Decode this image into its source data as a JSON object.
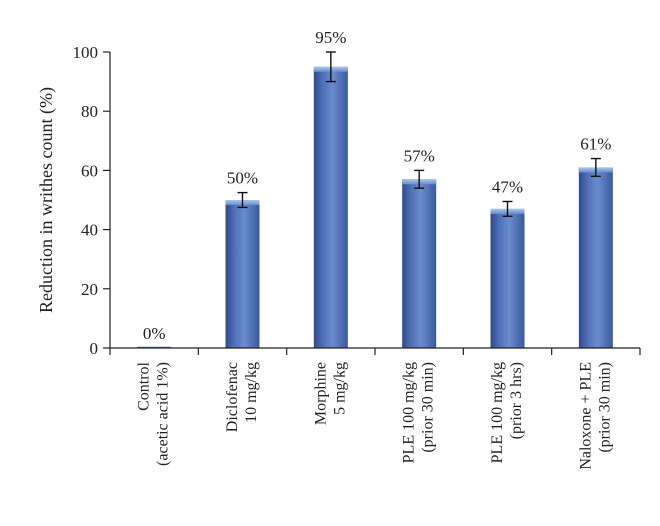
{
  "chart_data": {
    "type": "bar",
    "ylabel": "Reduction in writhes count (%)",
    "ylim": [
      0,
      100
    ],
    "yticks": [
      0,
      20,
      40,
      60,
      80,
      100
    ],
    "grid": false,
    "categories": [
      [
        "Control",
        "(acetic acid 1%)"
      ],
      [
        "Diclofenac",
        "10 mg/kg"
      ],
      [
        "Morphine",
        "5 mg/kg"
      ],
      [
        "PLE 100 mg/kg",
        "(prior 30 min)"
      ],
      [
        "PLE 100 mg/kg",
        "(prior 3 hrs)"
      ],
      [
        "Naloxone + PLE",
        "(prior 30 min)"
      ]
    ],
    "values": [
      0,
      50,
      95,
      57,
      47,
      61
    ],
    "errors": [
      0,
      2.5,
      5,
      3,
      2.5,
      3
    ],
    "data_labels": [
      "0%",
      "50%",
      "95%",
      "57%",
      "47%",
      "61%"
    ],
    "colors": {
      "bar": "#4f6fb8",
      "bar_dark": "#2e4a8e",
      "bar_light": "#8fb2e6",
      "axis": "#222222"
    }
  }
}
